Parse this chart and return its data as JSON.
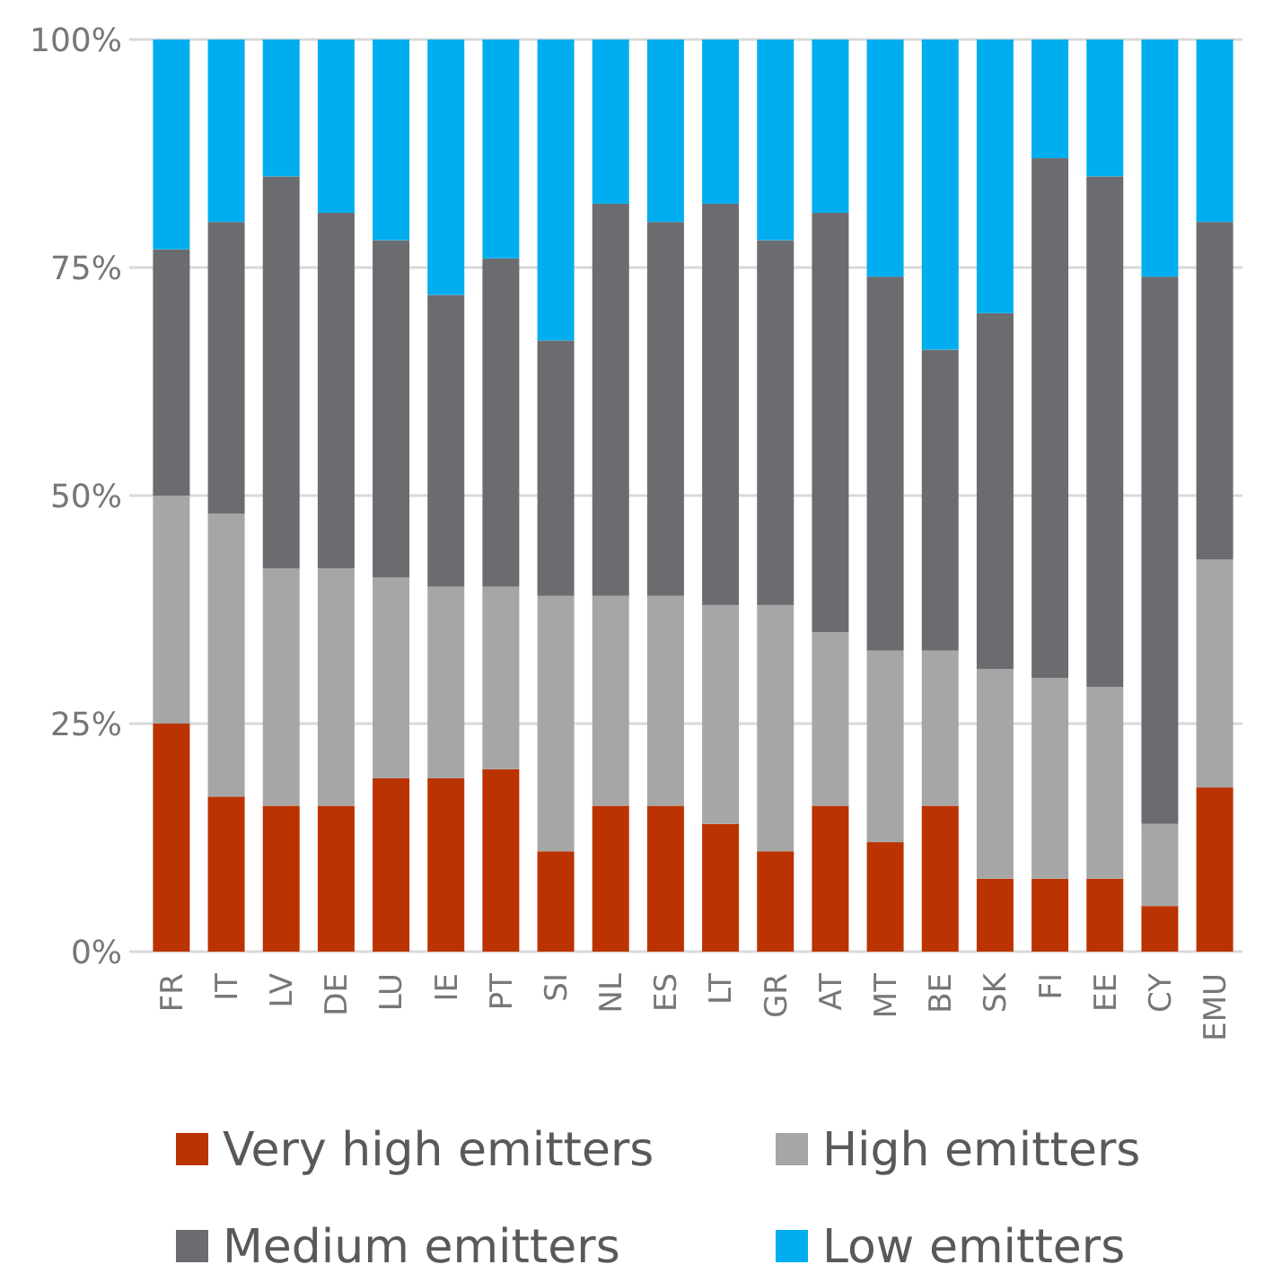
{
  "chart_data": {
    "type": "bar",
    "stacked": true,
    "categories": [
      "FR",
      "IT",
      "LV",
      "DE",
      "LU",
      "IE",
      "PT",
      "SI",
      "NL",
      "ES",
      "LT",
      "GR",
      "AT",
      "MT",
      "BE",
      "SK",
      "FI",
      "EE",
      "CY",
      "EMU"
    ],
    "series": [
      {
        "name": "Very high emitters",
        "color": "#bb3300",
        "values": [
          25,
          17,
          16,
          16,
          19,
          19,
          20,
          11,
          16,
          16,
          14,
          11,
          16,
          12,
          16,
          8,
          8,
          8,
          5,
          18
        ]
      },
      {
        "name": "High emitters",
        "color": "#a6a6a6",
        "values": [
          25,
          31,
          26,
          26,
          22,
          21,
          20,
          28,
          23,
          23,
          24,
          27,
          19,
          21,
          17,
          23,
          22,
          21,
          9,
          25
        ]
      },
      {
        "name": "Medium emitters",
        "color": "#6b6c70",
        "values": [
          27,
          32,
          43,
          39,
          37,
          32,
          36,
          28,
          43,
          41,
          44,
          40,
          46,
          41,
          33,
          39,
          57,
          56,
          60,
          37
        ]
      },
      {
        "name": "Low emitters",
        "color": "#00aeef",
        "values": [
          23,
          20,
          15,
          19,
          22,
          28,
          24,
          33,
          18,
          20,
          18,
          22,
          19,
          26,
          34,
          30,
          13,
          15,
          26,
          20
        ]
      }
    ],
    "ylim": [
      0,
      100
    ],
    "yticks": [
      {
        "value": 0,
        "label": "0%"
      },
      {
        "value": 25,
        "label": "25%"
      },
      {
        "value": 50,
        "label": "50%"
      },
      {
        "value": 75,
        "label": "75%"
      },
      {
        "value": 100,
        "label": "100%"
      }
    ],
    "grid": "y",
    "legend": "bottom"
  }
}
